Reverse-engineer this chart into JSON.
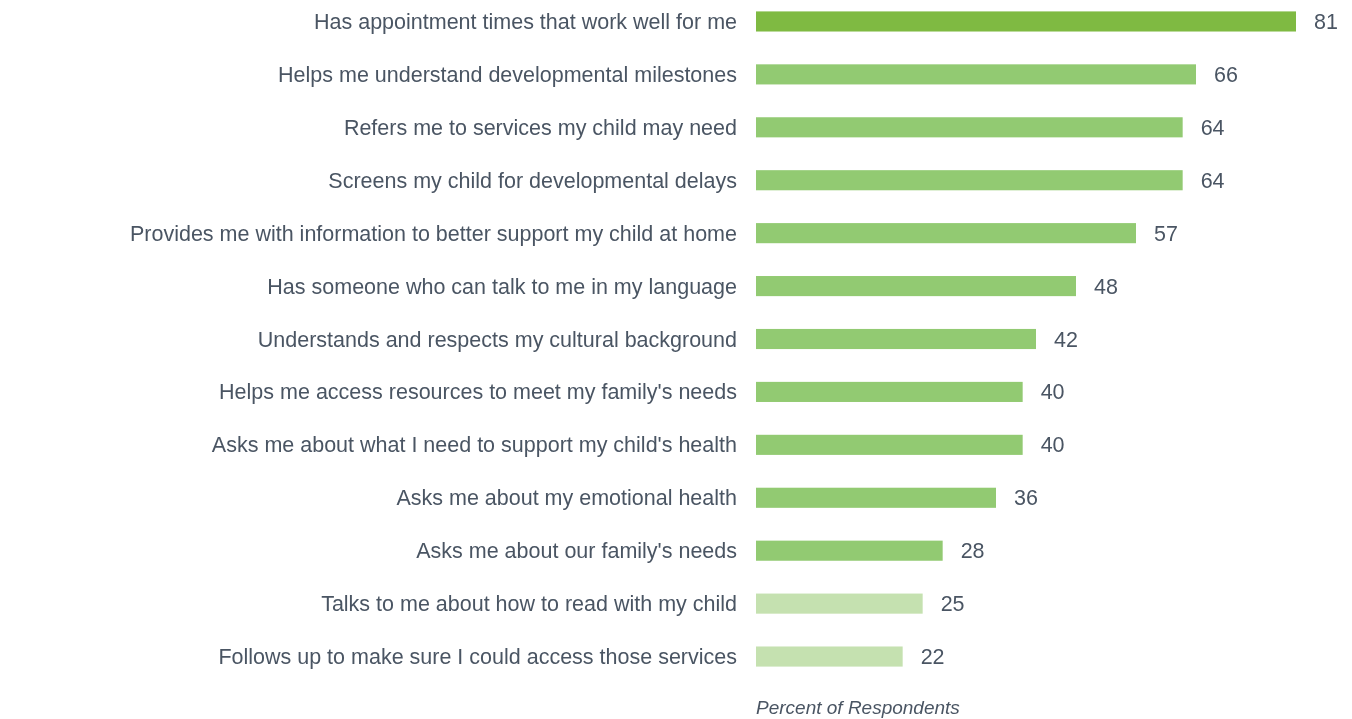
{
  "chart_data": {
    "type": "bar",
    "orientation": "horizontal",
    "xlabel": "Percent of Respondents",
    "categories": [
      "Has appointment times that work well for me",
      "Helps me understand developmental milestones",
      "Refers me to services my child may need",
      "Screens my child for developmental delays",
      "Provides me with information to better support my child at home",
      "Has someone who can talk to me in my language",
      "Understands and respects my cultural background",
      "Helps me access resources to meet my family's needs",
      "Asks me about what I need to support my child's health",
      "Asks me about my emotional health",
      "Asks me about our family's needs",
      "Talks to me about how to read with my child",
      "Follows up to make sure I could access those services"
    ],
    "values": [
      81,
      66,
      64,
      64,
      57,
      48,
      42,
      40,
      40,
      36,
      28,
      25,
      22
    ],
    "colors": [
      "#7fba42",
      "#92ca72",
      "#92ca72",
      "#92ca72",
      "#92ca72",
      "#92ca72",
      "#92ca72",
      "#92ca72",
      "#92ca72",
      "#92ca72",
      "#92ca72",
      "#c5e1b0",
      "#c5e1b0"
    ],
    "data_labels": true
  }
}
